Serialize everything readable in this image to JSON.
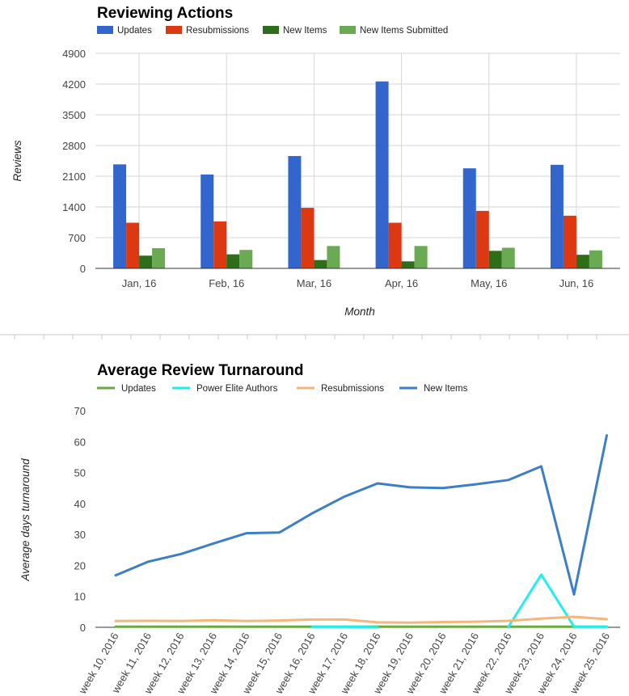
{
  "chart_data": [
    {
      "type": "bar",
      "title": "Reviewing Actions",
      "xlabel": "Month",
      "ylabel": "Reviews",
      "ylim": [
        0,
        4900
      ],
      "yticks": [
        "0",
        "700",
        "1400",
        "2100",
        "2800",
        "3500",
        "4200",
        "4900"
      ],
      "categories": [
        "Jan, 16",
        "Feb, 16",
        "Mar, 16",
        "Apr, 16",
        "May, 16",
        "Jun, 16"
      ],
      "legend_position": "top-left",
      "grid": true,
      "series": [
        {
          "name": "Updates",
          "color": "#3366cc",
          "values": [
            2370,
            2140,
            2560,
            4260,
            2280,
            2360
          ]
        },
        {
          "name": "Resubmissions",
          "color": "#dc3912",
          "values": [
            1040,
            1070,
            1380,
            1040,
            1310,
            1200
          ]
        },
        {
          "name": "New Items",
          "color": "#2f6e18",
          "values": [
            290,
            320,
            190,
            160,
            400,
            310
          ]
        },
        {
          "name": "New Items Submitted",
          "color": "#6aaa52",
          "values": [
            460,
            420,
            510,
            510,
            470,
            410
          ]
        }
      ]
    },
    {
      "type": "line",
      "title": "Average Review Turnaround",
      "xlabel": "",
      "ylabel": "Average days turnaround",
      "ylim": [
        0,
        70
      ],
      "yticks": [
        "0",
        "10",
        "20",
        "30",
        "40",
        "50",
        "60",
        "70"
      ],
      "categories": [
        "week 10, 2016",
        "week 11, 2016",
        "week 12, 2016",
        "week 13, 2016",
        "week 14, 2016",
        "week 15, 2016",
        "week 16, 2016",
        "week 17, 2016",
        "week 18, 2016",
        "week 19, 2016",
        "week 20, 2016",
        "week 21, 2016",
        "week 22, 2016",
        "week 23, 2016",
        "week 24, 2016",
        "week 25, 2016"
      ],
      "legend_position": "top-left",
      "grid": false,
      "series": [
        {
          "name": "Updates",
          "color": "#6aaa3e",
          "values": [
            0.2,
            0.2,
            0.2,
            0.2,
            0.2,
            0.2,
            0.2,
            0.2,
            0.2,
            0.2,
            0.2,
            0.2,
            0.2,
            0.2,
            0.2,
            0.2
          ]
        },
        {
          "name": "Power Elite Authors",
          "color": "#22eeee",
          "values": [
            null,
            null,
            null,
            null,
            null,
            null,
            0.2,
            0.2,
            0.0,
            null,
            null,
            null,
            0.2,
            17.0,
            0.2,
            0.2
          ]
        },
        {
          "name": "Resubmissions",
          "color": "#f4b67a",
          "values": [
            2.0,
            2.1,
            2.0,
            2.3,
            2.0,
            2.2,
            2.5,
            2.5,
            1.6,
            1.5,
            1.7,
            1.8,
            2.1,
            2.8,
            3.4,
            2.6
          ]
        },
        {
          "name": "New Items",
          "color": "#3d7fc4",
          "values": [
            16.8,
            21.2,
            23.7,
            27.1,
            30.4,
            30.6,
            36.8,
            42.3,
            46.5,
            45.2,
            45.0,
            46.2,
            47.6,
            52.0,
            10.6,
            62.0
          ]
        }
      ]
    }
  ]
}
